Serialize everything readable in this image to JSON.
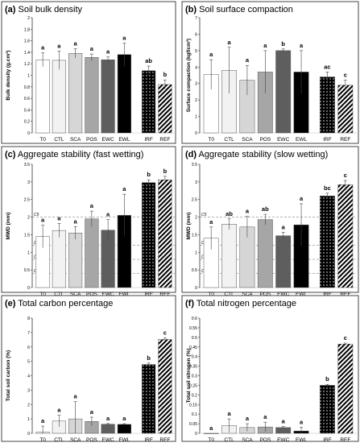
{
  "figure": {
    "colors": {
      "T0": "#ffffff",
      "CTL": "#f2f2f2",
      "SCA": "#d6d6d6",
      "POS": "#a6a6a6",
      "EWC": "#5e5e5e",
      "EWL": "#000000",
      "IRF": "#000000",
      "REF": "#ffffff",
      "stroke": "#555555",
      "ref_line": "#888888",
      "dotted_pattern": "white dots on black (IRF)",
      "hatched_pattern": "diagonal black hatch on white (REF)"
    }
  },
  "chart_data": [
    {
      "panel": "(a)",
      "title": "Soil bulk density",
      "type": "bar",
      "ylabel": "Bulk density (g.cm³)",
      "ylim": [
        0,
        2
      ],
      "yticks": [
        "0",
        "0.2",
        "0.4",
        "0.6",
        "0.8",
        "1",
        "1.2",
        "1.4",
        "1.6",
        "1.8",
        "2"
      ],
      "categories": [
        "T0",
        "CTL",
        "SCA",
        "POS",
        "EWC",
        "EWL",
        "IRF",
        "REF"
      ],
      "values": [
        1.27,
        1.26,
        1.38,
        1.31,
        1.27,
        1.36,
        1.08,
        0.84
      ],
      "errors": [
        0.12,
        0.16,
        0.08,
        0.06,
        0.05,
        0.2,
        0.08,
        0.08
      ],
      "letters": [
        "a",
        "a",
        "a",
        "a",
        "a",
        "a",
        "ab",
        "b"
      ],
      "reference_lines": []
    },
    {
      "panel": "(b)",
      "title": "Soil surface compaction",
      "type": "bar",
      "ylabel": "Surface compaction (kgf/cm²)",
      "ylim": [
        0,
        7
      ],
      "yticks": [
        "0",
        "1",
        "2",
        "3",
        "4",
        "5",
        "6",
        "7"
      ],
      "categories": [
        "T0",
        "CTL",
        "SCA",
        "POS",
        "EWC",
        "EWL",
        "IRF",
        "REF"
      ],
      "values": [
        3.55,
        3.8,
        3.2,
        3.7,
        5.0,
        3.7,
        3.4,
        2.9
      ],
      "errors": [
        0.9,
        1.4,
        0.9,
        1.3,
        0.1,
        1.3,
        0.3,
        0.3
      ],
      "letters": [
        "a",
        "a",
        "a",
        "a",
        "b",
        "a",
        "ac",
        "c"
      ],
      "reference_lines": []
    },
    {
      "panel": "(c)",
      "title": "Aggregate stability (fast wetting)",
      "type": "bar",
      "ylabel": "MWD (mm)",
      "ylim": [
        0,
        3.5
      ],
      "yticks": [
        "0",
        "0.5",
        "1",
        "1.5",
        "2",
        "2.5",
        "3",
        "3.5"
      ],
      "categories": [
        "T0",
        "CTL",
        "SCA",
        "POS",
        "EWC",
        "EWL",
        "IRF",
        "REF"
      ],
      "values": [
        1.45,
        1.62,
        1.55,
        1.95,
        1.63,
        2.05,
        2.98,
        3.06
      ],
      "errors": [
        0.32,
        0.2,
        0.18,
        0.22,
        0.3,
        0.6,
        0.08,
        0.1
      ],
      "letters": [
        "a",
        "a",
        "a",
        "a",
        "a",
        "a",
        "b",
        "b"
      ],
      "reference_lines": [
        {
          "label": "C5",
          "value": 2.0
        },
        {
          "label": "C4",
          "value": 1.2
        },
        {
          "label": "C3",
          "value": 0.8
        },
        {
          "label": "C2",
          "value": 0.4
        }
      ]
    },
    {
      "panel": "(d)",
      "title": "Aggregate stability (slow wetting)",
      "type": "bar",
      "ylabel": "MWD (mm)",
      "ylim": [
        0,
        3.5
      ],
      "yticks": [
        "0",
        "0.5",
        "1",
        "1.5",
        "2",
        "2.5",
        "3",
        "3.5"
      ],
      "categories": [
        "T0",
        "CTL",
        "SCA",
        "POS",
        "EWC",
        "EWL",
        "IRF",
        "REF"
      ],
      "values": [
        1.4,
        1.8,
        1.72,
        1.93,
        1.47,
        1.78,
        2.6,
        2.92
      ],
      "errors": [
        0.32,
        0.15,
        0.3,
        0.15,
        0.1,
        0.6,
        0.08,
        0.12
      ],
      "letters": [
        "a",
        "ab",
        "a",
        "ab",
        "a",
        "a",
        "bc",
        "c"
      ],
      "reference_lines": [
        {
          "label": "C5",
          "value": 2.0
        },
        {
          "label": "C4",
          "value": 1.2
        },
        {
          "label": "C3",
          "value": 0.8
        },
        {
          "label": "C2",
          "value": 0.4
        }
      ]
    },
    {
      "panel": "(e)",
      "title": "Total carbon percentage",
      "type": "bar",
      "ylabel": "Total soil carbon (%)",
      "ylim": [
        0,
        8
      ],
      "yticks": [
        "0",
        "1",
        "2",
        "3",
        "4",
        "5",
        "6",
        "7",
        "8"
      ],
      "categories": [
        "T0",
        "CTL",
        "SCA",
        "POS",
        "EWC",
        "EWL",
        "IRF",
        "REF"
      ],
      "values": [
        0.1,
        0.85,
        1.0,
        0.82,
        0.63,
        0.62,
        4.78,
        6.52
      ],
      "errors": [
        0.4,
        0.4,
        1.2,
        0.3,
        0.05,
        0.05,
        0.1,
        0.1
      ],
      "letters": [
        "a",
        "a",
        "a",
        "a",
        "a",
        "a",
        "b",
        "c"
      ],
      "reference_lines": []
    },
    {
      "panel": "(f)",
      "title": "Total nitrogen percentage",
      "type": "bar",
      "ylabel": "Total soil nitrogen (%)",
      "ylim": [
        0,
        0.6
      ],
      "yticks": [
        "0",
        "0.05",
        "0.1",
        "0.15",
        "0.2",
        "0.25",
        "0.3",
        "0.35",
        "0.4",
        "0.45",
        "0.5",
        "0.55",
        "0.6"
      ],
      "categories": [
        "T0",
        "CTL",
        "SCA",
        "POS",
        "EWC",
        "EWL",
        "IRF",
        "REF"
      ],
      "values": [
        0.0,
        0.04,
        0.03,
        0.033,
        0.03,
        0.012,
        0.25,
        0.465
      ],
      "errors": [
        0.0,
        0.035,
        0.02,
        0.025,
        0.005,
        0.02,
        0.005,
        0.005
      ],
      "letters": [
        "a",
        "a",
        "a",
        "a",
        "a",
        "a",
        "b",
        "c"
      ],
      "reference_lines": []
    }
  ]
}
